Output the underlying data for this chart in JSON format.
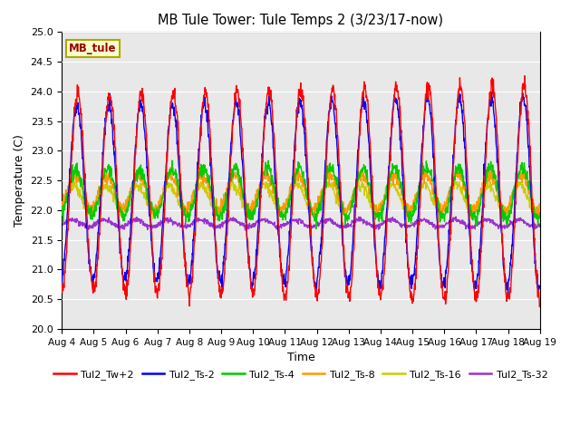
{
  "title": "MB Tule Tower: Tule Temps 2 (3/23/17-now)",
  "xlabel": "Time",
  "ylabel": "Temperature (C)",
  "ylim": [
    20.0,
    25.0
  ],
  "yticks": [
    20.0,
    20.5,
    21.0,
    21.5,
    22.0,
    22.5,
    23.0,
    23.5,
    24.0,
    24.5,
    25.0
  ],
  "xtick_labels": [
    "Aug 4",
    "Aug 5",
    "Aug 6",
    "Aug 7",
    "Aug 8",
    "Aug 9",
    "Aug 10",
    "Aug 11",
    "Aug 12",
    "Aug 13",
    "Aug 14",
    "Aug 15",
    "Aug 16",
    "Aug 17",
    "Aug 18",
    "Aug 19"
  ],
  "background_color": "#e8e8e8",
  "legend_label": "MB_tule",
  "series_names": [
    "Tul2_Tw+2",
    "Tul2_Ts-2",
    "Tul2_Ts-4",
    "Tul2_Ts-8",
    "Tul2_Ts-16",
    "Tul2_Ts-32"
  ],
  "series_colors": [
    "#ff0000",
    "#0000ff",
    "#00cc00",
    "#ff9900",
    "#cccc00",
    "#9933cc"
  ],
  "series_lw": [
    1.0,
    1.0,
    1.0,
    1.0,
    1.0,
    1.0
  ],
  "mean": [
    22.3,
    22.3,
    22.3,
    22.3,
    22.2,
    21.78
  ],
  "amplitude": [
    1.65,
    1.45,
    0.38,
    0.28,
    0.22,
    0.06
  ],
  "phase": [
    0.0,
    0.18,
    0.35,
    0.55,
    0.8,
    1.05
  ],
  "noise_std": [
    0.07,
    0.06,
    0.06,
    0.055,
    0.045,
    0.022
  ],
  "amp_growth": [
    0.18,
    0.15,
    0.05,
    0.03,
    0.02,
    0.0
  ],
  "figsize": [
    6.4,
    4.8
  ],
  "dpi": 100
}
